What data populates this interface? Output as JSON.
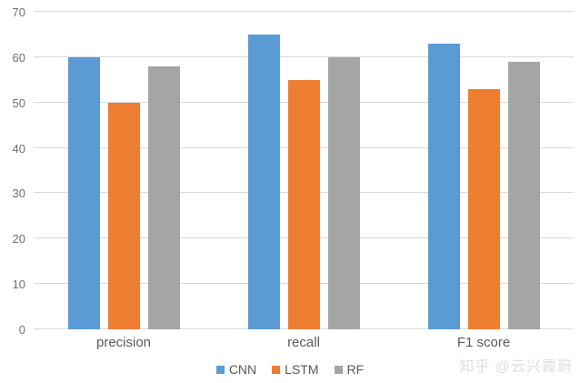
{
  "chart_data": {
    "type": "bar",
    "title": "",
    "xlabel": "",
    "ylabel": "",
    "categories": [
      "precision",
      "recall",
      "F1 score"
    ],
    "series": [
      {
        "name": "CNN",
        "color": "#5B9BD5",
        "values": [
          60,
          65,
          63
        ]
      },
      {
        "name": "LSTM",
        "color": "#ED7D31",
        "values": [
          50,
          55,
          53
        ]
      },
      {
        "name": "RF",
        "color": "#A5A5A5",
        "values": [
          58,
          60,
          59
        ]
      }
    ],
    "ylim": [
      0,
      70
    ],
    "ytick_step": 10,
    "ytick_labels": [
      "0",
      "10",
      "20",
      "30",
      "40",
      "50",
      "60",
      "70"
    ],
    "grid": true,
    "gridline_color": "#D9D9D9",
    "axis_text_color": "#6E6E6E",
    "legend_position": "bottom"
  },
  "watermark": {
    "text": "知乎 @云兴霞蔚",
    "color": "#DEDEDE"
  }
}
